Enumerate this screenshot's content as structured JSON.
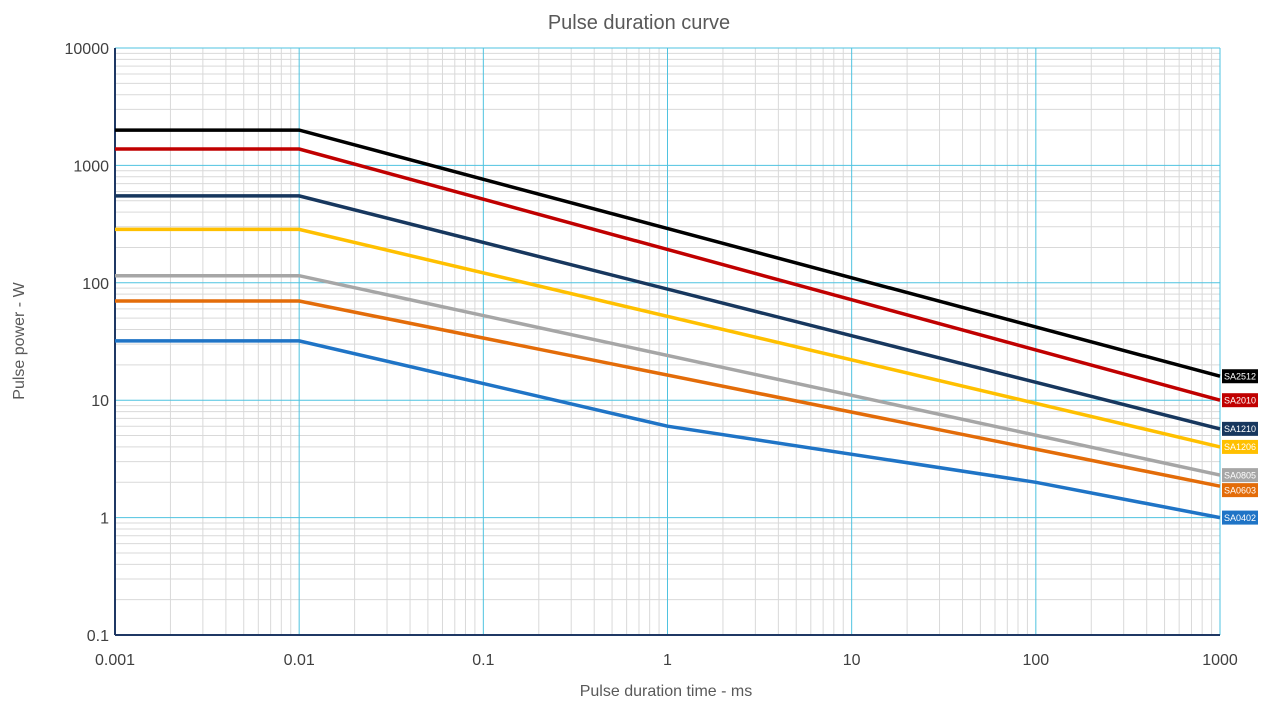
{
  "chart_data": {
    "type": "line",
    "title": "Pulse duration curve",
    "xlabel": "Pulse duration time - ms",
    "ylabel": "Pulse power - W",
    "xscale": "log",
    "yscale": "log",
    "xlim": [
      0.001,
      1000
    ],
    "ylim": [
      0.1,
      10000
    ],
    "x_ticks": [
      "0.001",
      "0.01",
      "0.1",
      "1",
      "10",
      "100",
      "1000"
    ],
    "y_ticks": [
      "0.1",
      "1",
      "10",
      "100",
      "1000",
      "10000"
    ],
    "grid": true,
    "legend": "series tags at right end of lines",
    "colors": {
      "major_grid": "#4fc3e0",
      "minor_grid": "#d9d9d9",
      "axis": "#1f3864"
    },
    "series": [
      {
        "name": "SA2512",
        "color": "#000000",
        "x": [
          0.001,
          0.01,
          1000
        ],
        "y": [
          2000,
          2000,
          16
        ]
      },
      {
        "name": "SA2010",
        "color": "#c00000",
        "x": [
          0.001,
          0.01,
          1000
        ],
        "y": [
          1380,
          1380,
          10
        ]
      },
      {
        "name": "SA1210",
        "color": "#17375e",
        "x": [
          0.001,
          0.01,
          1000
        ],
        "y": [
          550,
          550,
          5.7
        ]
      },
      {
        "name": "SA1206",
        "color": "#ffc000",
        "x": [
          0.001,
          0.01,
          1000
        ],
        "y": [
          285,
          285,
          4
        ]
      },
      {
        "name": "SA0805",
        "color": "#a6a6a6",
        "x": [
          0.001,
          0.01,
          1000
        ],
        "y": [
          115,
          115,
          2.3
        ]
      },
      {
        "name": "SA0603",
        "color": "#e36c09",
        "x": [
          0.001,
          0.01,
          1000
        ],
        "y": [
          70,
          70,
          1.85
        ]
      },
      {
        "name": "SA0402",
        "color": "#1f74c6",
        "x": [
          0.001,
          0.01,
          1,
          100,
          1000
        ],
        "y": [
          32,
          32,
          6,
          2,
          1
        ]
      }
    ]
  }
}
